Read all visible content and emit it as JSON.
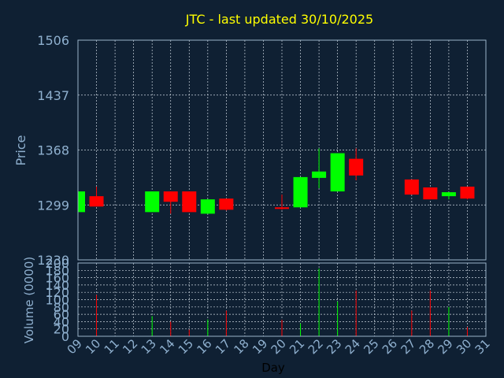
{
  "chart_data": [
    {
      "type": "candlestick",
      "title": "JTC - last updated 30/10/2025",
      "ylabel": "Price",
      "ylim": [
        1230,
        1506
      ],
      "yticks": [
        "1506",
        "1437",
        "1368",
        "1299",
        "1230"
      ],
      "ytick_values": [
        1506,
        1437,
        1368,
        1299,
        1230
      ],
      "grid": true,
      "x_day_range": [
        9,
        31
      ],
      "candles": [
        {
          "day": 9,
          "open": 1290,
          "high": 1316,
          "low": 1290,
          "close": 1316
        },
        {
          "day": 10,
          "open": 1310,
          "high": 1322,
          "low": 1297,
          "close": 1297
        },
        {
          "day": 13,
          "open": 1290,
          "high": 1316,
          "low": 1290,
          "close": 1316
        },
        {
          "day": 14,
          "open": 1316,
          "high": 1316,
          "low": 1288,
          "close": 1303
        },
        {
          "day": 15,
          "open": 1316,
          "high": 1316,
          "low": 1290,
          "close": 1290
        },
        {
          "day": 16,
          "open": 1288,
          "high": 1306,
          "low": 1288,
          "close": 1306
        },
        {
          "day": 17,
          "open": 1307,
          "high": 1307,
          "low": 1292,
          "close": 1293
        },
        {
          "day": 20,
          "open": 1296,
          "high": 1312,
          "low": 1293,
          "close": 1295
        },
        {
          "day": 21,
          "open": 1296,
          "high": 1334,
          "low": 1296,
          "close": 1334
        },
        {
          "day": 22,
          "open": 1333,
          "high": 1370,
          "low": 1320,
          "close": 1341
        },
        {
          "day": 23,
          "open": 1316,
          "high": 1364,
          "low": 1316,
          "close": 1364
        },
        {
          "day": 24,
          "open": 1357,
          "high": 1370,
          "low": 1330,
          "close": 1336
        },
        {
          "day": 27,
          "open": 1331,
          "high": 1331,
          "low": 1312,
          "close": 1312
        },
        {
          "day": 28,
          "open": 1321,
          "high": 1321,
          "low": 1306,
          "close": 1306
        },
        {
          "day": 29,
          "open": 1310,
          "high": 1315,
          "low": 1306,
          "close": 1315
        },
        {
          "day": 30,
          "open": 1322,
          "high": 1322,
          "low": 1306,
          "close": 1307
        }
      ]
    },
    {
      "type": "bar",
      "ylabel": "Volume (0000)",
      "xlabel": "Day",
      "ylim": [
        0,
        200
      ],
      "yticks": [
        "200",
        "180",
        "160",
        "140",
        "120",
        "100",
        "80",
        "60",
        "40",
        "20",
        "0"
      ],
      "ytick_values": [
        200,
        180,
        160,
        140,
        120,
        100,
        80,
        60,
        40,
        20,
        0
      ],
      "categories": [
        "09",
        "10",
        "11",
        "12",
        "13",
        "14",
        "15",
        "16",
        "17",
        "18",
        "19",
        "20",
        "21",
        "22",
        "23",
        "24",
        "25",
        "26",
        "27",
        "28",
        "29",
        "30",
        "31"
      ],
      "volumes": [
        {
          "day": 10,
          "value": 113,
          "direction": "down"
        },
        {
          "day": 13,
          "value": 55,
          "direction": "up"
        },
        {
          "day": 14,
          "value": 40,
          "direction": "down"
        },
        {
          "day": 15,
          "value": 18,
          "direction": "down"
        },
        {
          "day": 16,
          "value": 46,
          "direction": "up"
        },
        {
          "day": 17,
          "value": 70,
          "direction": "down"
        },
        {
          "day": 20,
          "value": 45,
          "direction": "down"
        },
        {
          "day": 21,
          "value": 35,
          "direction": "up"
        },
        {
          "day": 22,
          "value": 185,
          "direction": "up"
        },
        {
          "day": 23,
          "value": 95,
          "direction": "up"
        },
        {
          "day": 24,
          "value": 125,
          "direction": "down"
        },
        {
          "day": 27,
          "value": 70,
          "direction": "down"
        },
        {
          "day": 28,
          "value": 125,
          "direction": "down"
        },
        {
          "day": 29,
          "value": 80,
          "direction": "up"
        },
        {
          "day": 30,
          "value": 25,
          "direction": "down"
        }
      ]
    }
  ],
  "colors": {
    "background": "#0f2033",
    "title": "#ffff00",
    "axis_text": "#8fb0cf",
    "label_text": "#000000",
    "grid": "#c9d3dd",
    "up": "#00ff00",
    "down": "#ff0000"
  }
}
